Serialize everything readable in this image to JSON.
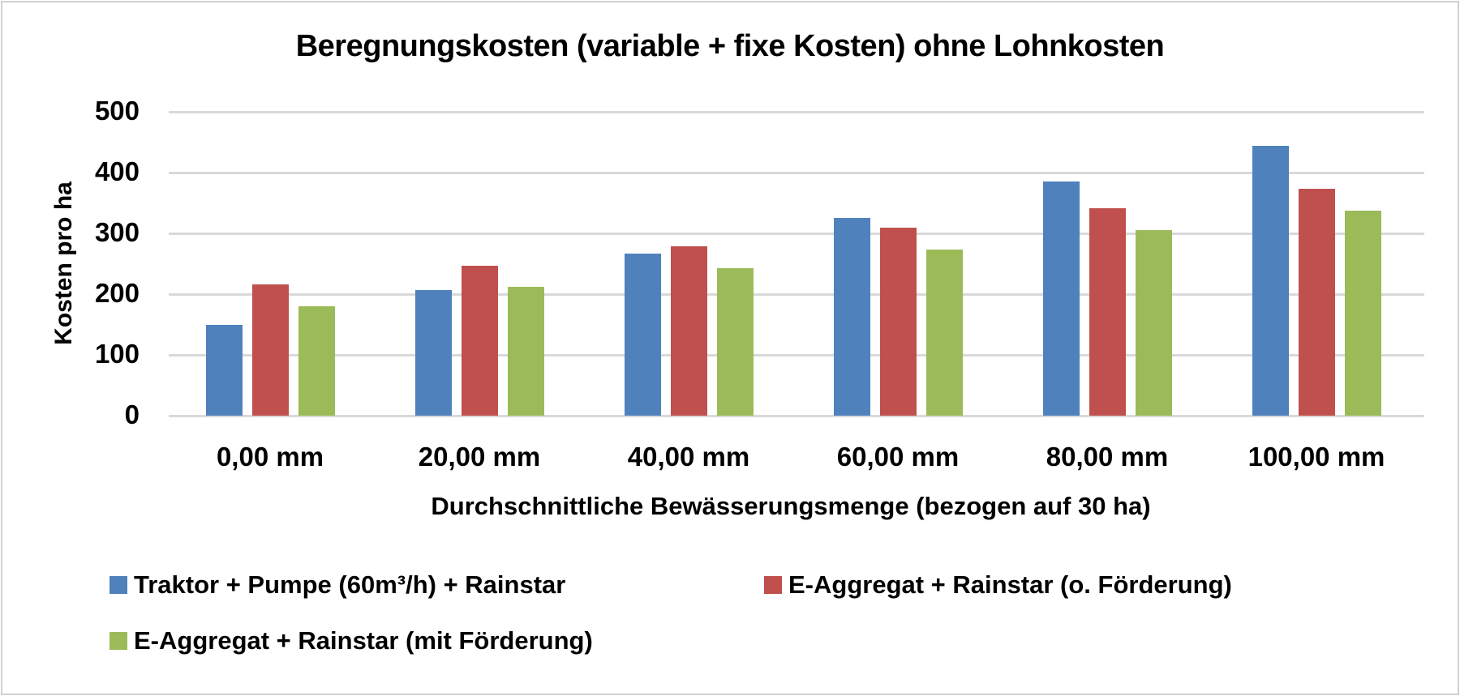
{
  "chart_data": {
    "type": "bar",
    "title": "Beregnungskosten (variable + fixe Kosten) ohne Lohnkosten",
    "xlabel": "Durchschnittliche Bewässerungsmenge (bezogen auf 30 ha)",
    "ylabel": "Kosten pro ha",
    "ylim": [
      0,
      500
    ],
    "yticks": [
      "0",
      "100",
      "200",
      "300",
      "400",
      "500"
    ],
    "grid": true,
    "legend_position": "bottom",
    "categories": [
      "0,00 mm",
      "20,00 mm",
      "40,00 mm",
      "60,00 mm",
      "80,00 mm",
      "100,00 mm"
    ],
    "series": [
      {
        "name": "Traktor + Pumpe (60m³/h) + Rainstar",
        "color": "#4f81bd",
        "values": [
          149,
          207,
          267,
          326,
          385,
          444
        ]
      },
      {
        "name": "E-Aggregat + Rainstar (o. Förderung)",
        "color": "#c0504d",
        "values": [
          216,
          247,
          279,
          309,
          342,
          373
        ]
      },
      {
        "name": "E-Aggregat + Rainstar (mit Förderung)",
        "color": "#9bbb59",
        "values": [
          180,
          212,
          243,
          274,
          306,
          338
        ]
      }
    ]
  }
}
